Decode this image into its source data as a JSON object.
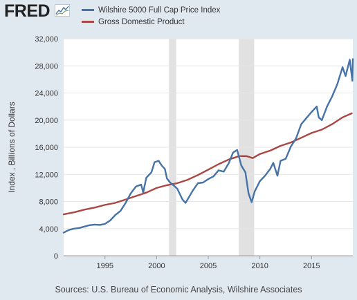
{
  "header": {
    "logo_text": "FRED",
    "logo_icon": "chart-line-icon"
  },
  "legend": [
    {
      "label": "Wilshire 5000 Full Cap Price Index",
      "color": "#4572a7"
    },
    {
      "label": "Gross Domestic Product",
      "color": "#aa4643"
    }
  ],
  "source_note": "Sources: U.S. Bureau of Economic Analysis, Wilshire Associates",
  "chart_data": {
    "type": "line",
    "ylabel": "Index , Billions of Dollars",
    "ylim": [
      0,
      32000
    ],
    "xlim": [
      1991.0,
      2019.0
    ],
    "y_ticks": [
      0,
      4000,
      8000,
      12000,
      16000,
      20000,
      24000,
      28000,
      32000
    ],
    "y_tick_labels": [
      "0",
      "4,000",
      "8,000",
      "12,000",
      "16,000",
      "20,000",
      "24,000",
      "28,000",
      "32,000"
    ],
    "x_ticks": [
      1995,
      2000,
      2005,
      2010,
      2015
    ],
    "x_tick_labels": [
      "1995",
      "2000",
      "2005",
      "2010",
      "2015"
    ],
    "grid": "horizontal",
    "recessions": [
      [
        2001.2,
        2001.9
      ],
      [
        2007.95,
        2009.45
      ]
    ],
    "series": [
      {
        "name": "Wilshire 5000 Full Cap Price Index",
        "color": "#4572a7",
        "x": [
          1991.0,
          1991.5,
          1992.0,
          1992.5,
          1993.0,
          1993.5,
          1994.0,
          1994.5,
          1995.0,
          1995.5,
          1996.0,
          1996.5,
          1997.0,
          1997.5,
          1998.0,
          1998.5,
          1998.7,
          1999.0,
          1999.5,
          1999.8,
          2000.2,
          2000.5,
          2000.8,
          2001.0,
          2001.3,
          2001.7,
          2002.0,
          2002.5,
          2002.8,
          2003.0,
          2003.5,
          2004.0,
          2004.5,
          2005.0,
          2005.5,
          2006.0,
          2006.5,
          2007.0,
          2007.4,
          2007.8,
          2008.2,
          2008.6,
          2008.9,
          2009.2,
          2009.5,
          2010.0,
          2010.5,
          2011.0,
          2011.3,
          2011.7,
          2012.0,
          2012.5,
          2013.0,
          2013.5,
          2014.0,
          2014.5,
          2015.0,
          2015.5,
          2015.7,
          2016.0,
          2016.5,
          2017.0,
          2017.5,
          2018.0,
          2018.3,
          2018.7,
          2018.95,
          2019.0
        ],
        "values": [
          3400,
          3800,
          4000,
          4100,
          4300,
          4500,
          4600,
          4550,
          4700,
          5200,
          6000,
          6600,
          7800,
          9200,
          10200,
          10500,
          9300,
          11500,
          12300,
          13800,
          14000,
          13300,
          12800,
          11400,
          10800,
          10300,
          9900,
          8300,
          7800,
          8300,
          9600,
          10700,
          10800,
          11300,
          11700,
          12600,
          12400,
          13700,
          15200,
          15600,
          13300,
          12300,
          9200,
          7900,
          9500,
          11000,
          11800,
          12800,
          13700,
          11800,
          14000,
          14300,
          16100,
          17300,
          19400,
          20300,
          21200,
          22000,
          20400,
          20000,
          22000,
          23500,
          25300,
          27800,
          26500,
          28900,
          25800,
          29000
        ]
      },
      {
        "name": "Gross Domestic Product",
        "color": "#aa4643",
        "x": [
          1991.0,
          1992.0,
          1993.0,
          1994.0,
          1995.0,
          1996.0,
          1997.0,
          1998.0,
          1999.0,
          2000.0,
          2001.0,
          2002.0,
          2003.0,
          2004.0,
          2005.0,
          2006.0,
          2007.0,
          2008.0,
          2008.7,
          2009.3,
          2010.0,
          2011.0,
          2012.0,
          2013.0,
          2014.0,
          2015.0,
          2016.0,
          2017.0,
          2018.0,
          2018.9
        ],
        "values": [
          6100,
          6400,
          6800,
          7100,
          7500,
          7800,
          8300,
          8800,
          9300,
          10000,
          10400,
          10700,
          11200,
          11900,
          12700,
          13500,
          14200,
          14700,
          14700,
          14400,
          15000,
          15500,
          16200,
          16700,
          17400,
          18100,
          18600,
          19400,
          20400,
          21000
        ]
      }
    ]
  }
}
